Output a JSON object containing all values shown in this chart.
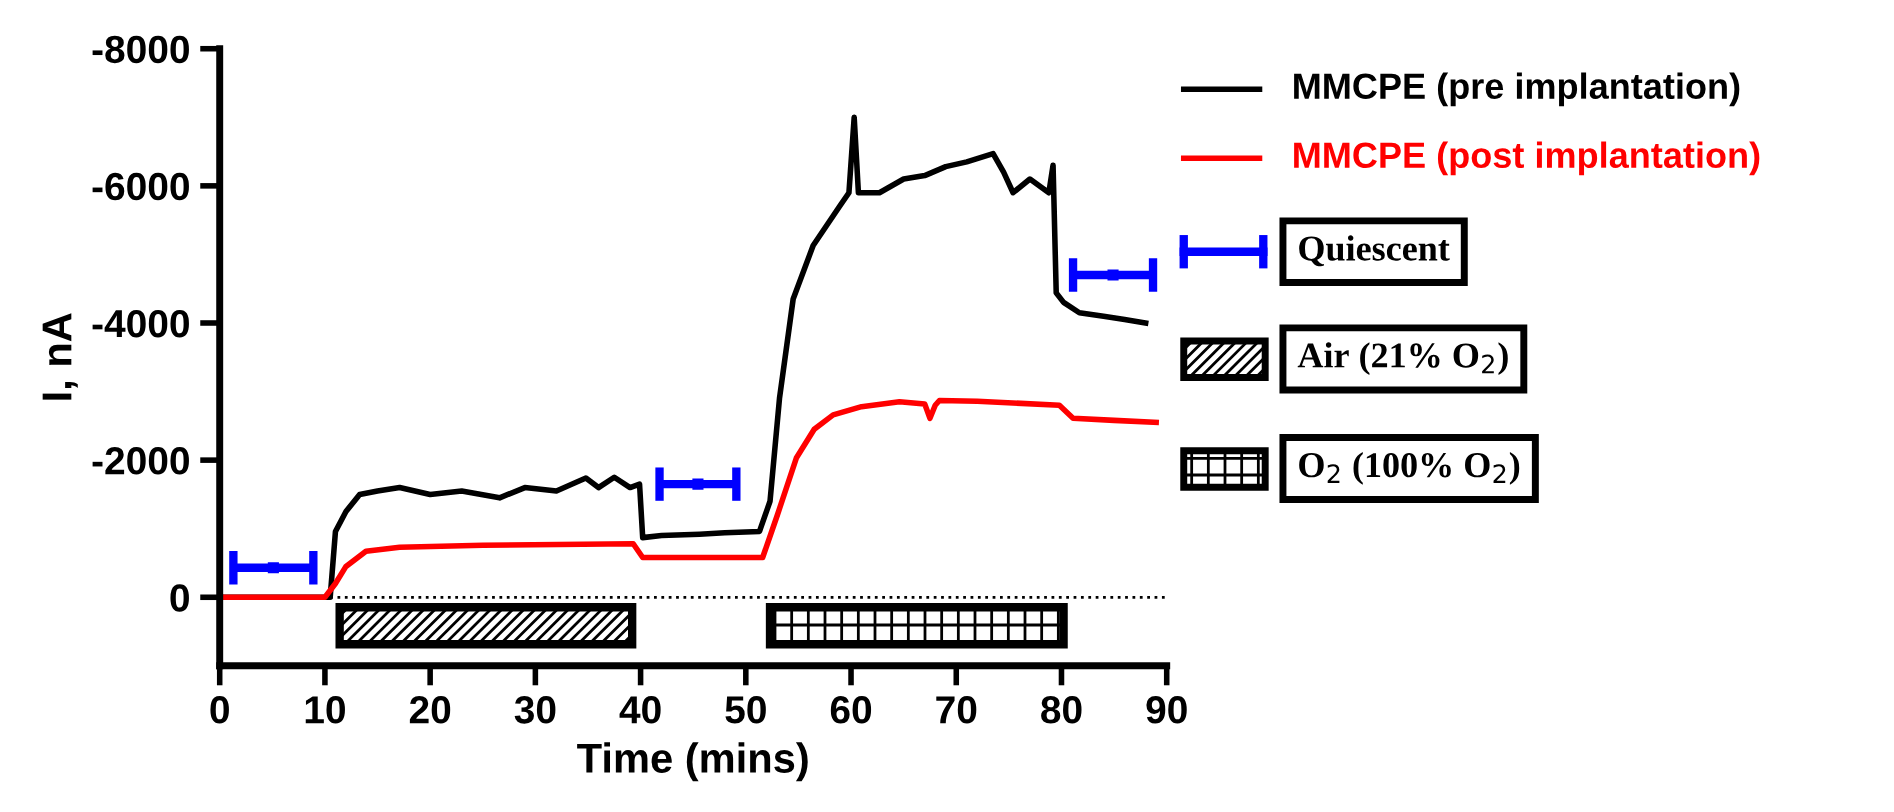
{
  "chart_data": {
    "type": "line",
    "xlabel": "Time (mins)",
    "ylabel": "I, nA",
    "xlim": [
      0,
      90
    ],
    "xticks": [
      0,
      10,
      20,
      30,
      40,
      50,
      60,
      70,
      80,
      90
    ],
    "ylim": [
      1000,
      -8000
    ],
    "yticks": [
      0,
      -2000,
      -4000,
      -6000,
      -8000
    ],
    "grid": false,
    "legend": "right",
    "marker": "none",
    "line_style": "solid",
    "series": [
      {
        "name": "MMCPE (pre implantation)",
        "color": "#000000",
        "x": [
          0,
          10.5,
          11,
          12,
          13.3,
          15,
          17.1,
          20,
          23,
          26.6,
          29,
          32,
          34.8,
          36,
          37.5,
          39,
          39.9,
          40.2,
          42,
          45.6,
          48,
          51.3,
          52.3,
          53.2,
          54.5,
          56.4,
          58.9,
          59.8,
          60.3,
          60.7,
          62.7,
          65,
          67,
          69,
          71,
          73.5,
          74.5,
          75.4,
          77,
          78.8,
          79.2,
          79.5,
          80.2,
          81.7,
          84,
          86,
          88
        ],
        "values": [
          0,
          0,
          -960,
          -1250,
          -1500,
          -1550,
          -1600,
          -1500,
          -1550,
          -1450,
          -1600,
          -1550,
          -1740,
          -1600,
          -1750,
          -1600,
          -1650,
          -870,
          -900,
          -920,
          -940,
          -960,
          -1400,
          -2900,
          -4350,
          -5130,
          -5700,
          -5900,
          -7000,
          -5900,
          -5900,
          -6100,
          -6150,
          -6280,
          -6350,
          -6470,
          -6200,
          -5900,
          -6100,
          -5900,
          -6300,
          -4440,
          -4300,
          -4150,
          -4100,
          -4050,
          -4000
        ]
      },
      {
        "name": "MMCPE (post implantation)",
        "color": "#ff0000",
        "x": [
          0,
          10,
          11,
          12,
          13.9,
          17.1,
          25,
          39.3,
          40.2,
          43.7,
          51.6,
          53,
          54.8,
          56.5,
          58.3,
          61,
          64.6,
          67,
          67.5,
          68,
          68.4,
          72,
          79.8,
          81.1,
          85,
          89
        ],
        "values": [
          0,
          0,
          -200,
          -450,
          -670,
          -730,
          -760,
          -780,
          -580,
          -580,
          -580,
          -1200,
          -2030,
          -2450,
          -2660,
          -2780,
          -2850,
          -2820,
          -2610,
          -2800,
          -2870,
          -2860,
          -2800,
          -2610,
          -2580,
          -2550
        ]
      },
      {
        "name": "Quiescent",
        "type": "scatter",
        "marker": "square",
        "color": "#0000ff",
        "x": [
          5.1,
          45.45,
          84.9
        ],
        "values": [
          -430,
          -1650,
          -4700
        ],
        "xerrors": [
          3.8,
          3.65,
          3.8
        ]
      }
    ],
    "ref_lines": [
      {
        "axis": "y",
        "value": 0,
        "line_style": "dotted",
        "color": "#000000"
      }
    ],
    "bands": [
      {
        "axis": "x",
        "from": 11.4,
        "to": 39.2,
        "label": "Air (21% O$_{2}$)"
      },
      {
        "axis": "x",
        "from": 52.3,
        "to": 80.2,
        "label": "O$_{2}$ (100% O$_{2}$)"
      }
    ]
  }
}
